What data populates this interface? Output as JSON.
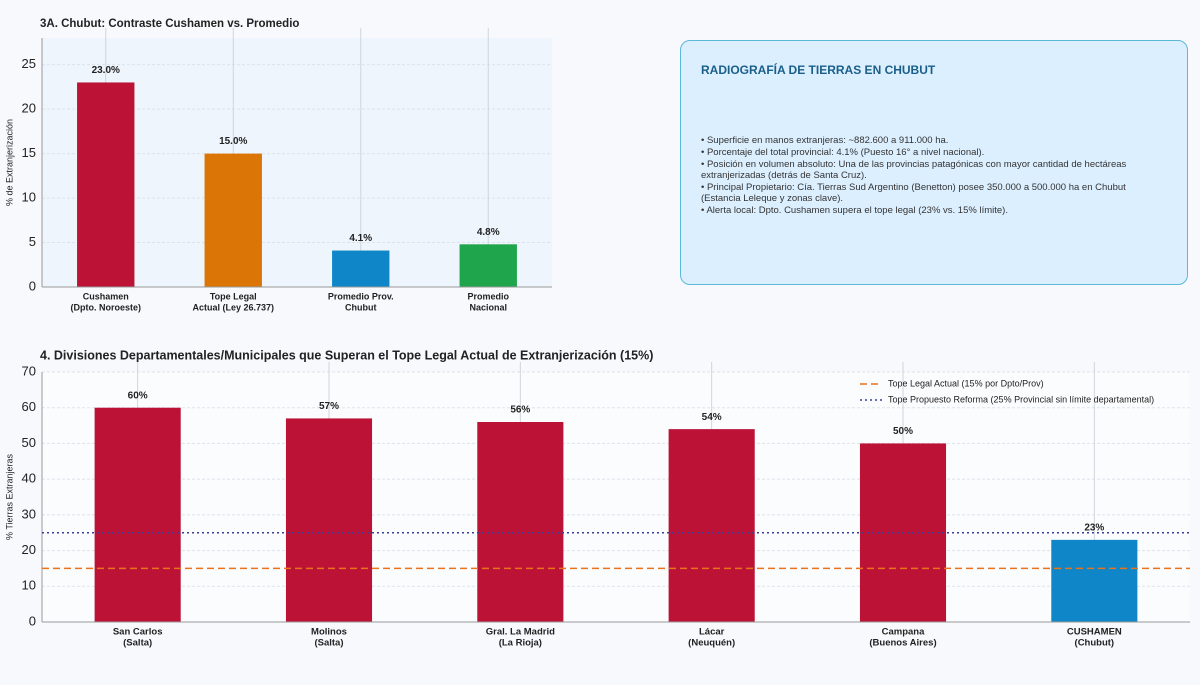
{
  "chart_data": [
    {
      "type": "bar",
      "title": "3A. Chubut: Contraste Cushamen vs. Promedio",
      "y_label": "% de Extranjerización",
      "categories": [
        [
          "Cushamen",
          "(Dpto. Noroeste)"
        ],
        [
          "Tope Legal",
          "Actual (Ley 26.737)"
        ],
        [
          "Promedio Prov.",
          "Chubut"
        ],
        [
          "Promedio",
          "Nacional"
        ]
      ],
      "values": [
        23,
        15,
        4.1,
        4.8
      ],
      "value_labels": [
        "23.0%",
        "15.0%",
        "4.1%",
        "4.8%"
      ],
      "colors": [
        "#bb1236",
        "#db7506",
        "#0e86c8",
        "#1fa54c"
      ],
      "ylim": [
        0,
        28
      ],
      "yticks": [
        0,
        5,
        10,
        15,
        20,
        25
      ],
      "grid": true
    },
    {
      "type": "bar",
      "title": "4. Divisiones Departamentales/Municipales que Superan el Tope Legal Actual de Extranjerización (15%)",
      "y_label": "% Tierras Extranjeras",
      "categories": [
        [
          "San Carlos",
          "(Salta)"
        ],
        [
          "Molinos",
          "(Salta)"
        ],
        [
          "Gral. La Madrid",
          "(La Rioja)"
        ],
        [
          "Lácar",
          "(Neuquén)"
        ],
        [
          "Campana",
          "(Buenos Aires)"
        ],
        [
          "CUSHAMEN",
          "(Chubut)"
        ]
      ],
      "values": [
        60,
        57,
        56,
        54,
        50,
        23
      ],
      "value_labels": [
        "60%",
        "57%",
        "56%",
        "54%",
        "50%",
        "23%"
      ],
      "colors": [
        "#bb1236",
        "#bb1236",
        "#bb1236",
        "#bb1236",
        "#bb1236",
        "#0e86c8"
      ],
      "label_colors": [
        "#222222",
        "#222222",
        "#222222",
        "#222222",
        "#222222",
        "#0e86c8"
      ],
      "ylim": [
        0,
        70
      ],
      "yticks": [
        0,
        10,
        20,
        30,
        40,
        50,
        60,
        70
      ],
      "grid": true,
      "legend": "upper right",
      "reference_lines": [
        {
          "name": "Tope Legal Actual (15% por Dpto/Prov)",
          "value": 15,
          "color": "#e8731a",
          "style": "dashed"
        },
        {
          "name": "Tope Propuesto Reforma (25% Provincial sin límite departamental)",
          "value": 25,
          "color": "#3b3f9a",
          "style": "dotted"
        }
      ]
    }
  ],
  "info_panel": {
    "title": "RADIOGRAFÍA DE TIERRAS EN CHUBUT",
    "items": [
      "Superficie en manos extranjeras: ~882.600 a 911.000 ha.",
      "Porcentaje del total provincial: 4.1% (Puesto 16° a nivel nacional).",
      "Posición en volumen absoluto: Una de las provincias patagónicas con mayor cantidad de hectáreas extranjerizadas (detrás de Santa Cruz).",
      "Principal Propietario: Cía. Tierras Sud Argentino (Benetton) posee 350.000 a 500.000 ha en Chubut (Estancia Leleque y zonas clave).",
      "Alerta local: Dpto. Cushamen supera el tope legal (23% vs. 15% límite)."
    ]
  }
}
